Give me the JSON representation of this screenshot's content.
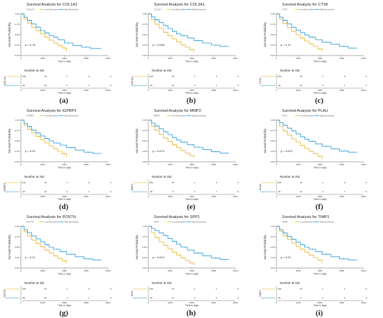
{
  "colors": {
    "low": "#e8b632",
    "high": "#2a9bd8",
    "axis": "#333333",
    "risk_line": "#555555"
  },
  "common": {
    "ylabel": "Survival Probability",
    "xlabel": "Time in days",
    "risk_title": "Number at risk",
    "risk_xlabel": "Time in days",
    "legend_low": "Low Expression",
    "legend_high": "High Expression",
    "risk_low_label": "Low Expression",
    "risk_high_label": "High Expression",
    "y_ticks": [
      "0.00",
      "0.25",
      "0.50",
      "0.75",
      "1.00"
    ],
    "x_ticks": [
      "0",
      "1000",
      "2000",
      "3000",
      "4000"
    ]
  },
  "chart_data": [
    {
      "type": "line",
      "letter": "(a)",
      "gene": "COL1A1",
      "title": "Survival Analysis for COL1A1",
      "pvalue": "p = 0.15",
      "xlim": [
        0,
        4000
      ],
      "ylim": [
        0,
        1
      ],
      "series": [
        {
          "name": "Low Expression",
          "x": [
            0,
            150,
            300,
            500,
            700,
            900,
            1100,
            1300,
            1500,
            1700,
            1900,
            2100
          ],
          "y": [
            1.0,
            0.88,
            0.78,
            0.68,
            0.6,
            0.52,
            0.44,
            0.37,
            0.3,
            0.24,
            0.18,
            0.1
          ]
        },
        {
          "name": "High Expression",
          "x": [
            0,
            150,
            300,
            500,
            700,
            900,
            1100,
            1300,
            1500,
            1700,
            2000,
            2400,
            2800,
            3200,
            3700
          ],
          "y": [
            1.0,
            0.92,
            0.84,
            0.76,
            0.68,
            0.6,
            0.54,
            0.48,
            0.44,
            0.38,
            0.3,
            0.24,
            0.2,
            0.17,
            0.17
          ]
        }
      ],
      "risk_low": [
        "138",
        "15",
        "1",
        "0",
        "0"
      ],
      "risk_high": [
        "46",
        "10",
        "3",
        "1",
        "0"
      ]
    },
    {
      "type": "line",
      "letter": "(b)",
      "gene": "COL3A1",
      "title": "Survival Analysis for COL3A1",
      "pvalue": "p = 0.048",
      "xlim": [
        0,
        4000
      ],
      "ylim": [
        0,
        1
      ],
      "series": [
        {
          "name": "Low Expression",
          "x": [
            0,
            150,
            300,
            500,
            700,
            900,
            1100,
            1300,
            1500,
            1700,
            1900,
            2100
          ],
          "y": [
            1.0,
            0.86,
            0.75,
            0.65,
            0.56,
            0.48,
            0.4,
            0.33,
            0.26,
            0.2,
            0.14,
            0.08
          ]
        },
        {
          "name": "High Expression",
          "x": [
            0,
            150,
            300,
            500,
            700,
            900,
            1100,
            1300,
            1500,
            1800,
            2100,
            2500,
            2900,
            3300,
            3700
          ],
          "y": [
            1.0,
            0.93,
            0.86,
            0.79,
            0.72,
            0.65,
            0.58,
            0.52,
            0.48,
            0.42,
            0.36,
            0.3,
            0.25,
            0.22,
            0.22
          ]
        }
      ],
      "risk_low": [
        "138",
        "15",
        "1",
        "0",
        "0"
      ],
      "risk_high": [
        "46",
        "10",
        "3",
        "1",
        "0"
      ]
    },
    {
      "type": "line",
      "letter": "(c)",
      "gene": "CTSK",
      "title": "Survival Analysis for CTSK",
      "pvalue": "p = 0.12",
      "xlim": [
        0,
        4000
      ],
      "ylim": [
        0,
        1
      ],
      "series": [
        {
          "name": "Low Expression",
          "x": [
            0,
            150,
            300,
            500,
            700,
            900,
            1100,
            1300,
            1500,
            1700,
            1900,
            2100
          ],
          "y": [
            1.0,
            0.87,
            0.77,
            0.67,
            0.58,
            0.5,
            0.42,
            0.35,
            0.28,
            0.22,
            0.16,
            0.1
          ]
        },
        {
          "name": "High Expression",
          "x": [
            0,
            150,
            300,
            500,
            700,
            900,
            1100,
            1300,
            1500,
            1800,
            2100,
            2500,
            2900,
            3300,
            3700
          ],
          "y": [
            1.0,
            0.92,
            0.84,
            0.76,
            0.68,
            0.61,
            0.55,
            0.49,
            0.44,
            0.38,
            0.32,
            0.27,
            0.22,
            0.18,
            0.18
          ]
        }
      ],
      "risk_low": [
        "138",
        "15",
        "1",
        "0",
        "0"
      ],
      "risk_high": [
        "46",
        "10",
        "3",
        "1",
        "0"
      ]
    },
    {
      "type": "line",
      "letter": "(d)",
      "gene": "IGFBP3",
      "title": "Survival Analysis for IGFBP3",
      "pvalue": "p = 0.22",
      "xlim": [
        0,
        4000
      ],
      "ylim": [
        0,
        1
      ],
      "series": [
        {
          "name": "Low Expression",
          "x": [
            0,
            150,
            300,
            500,
            700,
            900,
            1100,
            1300,
            1500,
            1700,
            1900,
            2100
          ],
          "y": [
            1.0,
            0.88,
            0.78,
            0.69,
            0.61,
            0.53,
            0.45,
            0.38,
            0.31,
            0.25,
            0.19,
            0.12
          ]
        },
        {
          "name": "High Expression",
          "x": [
            0,
            150,
            300,
            500,
            700,
            900,
            1100,
            1300,
            1500,
            1800,
            2100,
            2500,
            2900,
            3300,
            3700
          ],
          "y": [
            1.0,
            0.92,
            0.84,
            0.76,
            0.69,
            0.62,
            0.56,
            0.5,
            0.45,
            0.4,
            0.34,
            0.28,
            0.23,
            0.2,
            0.2
          ]
        }
      ],
      "risk_low": [
        "138",
        "15",
        "1",
        "0",
        "0"
      ],
      "risk_high": [
        "46",
        "10",
        "3",
        "1",
        "0"
      ]
    },
    {
      "type": "line",
      "letter": "(e)",
      "gene": "MMP2",
      "title": "Survival Analysis for MMP2",
      "pvalue": "p = 0.074",
      "xlim": [
        0,
        4000
      ],
      "ylim": [
        0,
        1
      ],
      "series": [
        {
          "name": "Low Expression",
          "x": [
            0,
            150,
            300,
            500,
            700,
            900,
            1100,
            1300,
            1500,
            1700,
            1900,
            2100
          ],
          "y": [
            1.0,
            0.86,
            0.76,
            0.66,
            0.57,
            0.49,
            0.41,
            0.34,
            0.27,
            0.21,
            0.15,
            0.09
          ]
        },
        {
          "name": "High Expression",
          "x": [
            0,
            150,
            300,
            500,
            700,
            900,
            1100,
            1300,
            1500,
            1800,
            2100,
            2500,
            2900,
            3300,
            3700
          ],
          "y": [
            1.0,
            0.93,
            0.86,
            0.79,
            0.72,
            0.65,
            0.58,
            0.52,
            0.47,
            0.41,
            0.35,
            0.29,
            0.24,
            0.21,
            0.21
          ]
        }
      ],
      "risk_low": [
        "136",
        "16",
        "1",
        "0",
        "0"
      ],
      "risk_high": [
        "48",
        "9",
        "3",
        "1",
        "0"
      ]
    },
    {
      "type": "line",
      "letter": "(f)",
      "gene": "PLAU",
      "title": "Survival Analysis for PLAU",
      "pvalue": "p = 0.022",
      "xlim": [
        0,
        4000
      ],
      "ylim": [
        0,
        1
      ],
      "series": [
        {
          "name": "Low Expression",
          "x": [
            0,
            150,
            300,
            500,
            700,
            900,
            1100,
            1300,
            1500,
            1700,
            1900,
            2100
          ],
          "y": [
            1.0,
            0.85,
            0.74,
            0.64,
            0.55,
            0.47,
            0.39,
            0.32,
            0.25,
            0.19,
            0.13,
            0.07
          ]
        },
        {
          "name": "High Expression",
          "x": [
            0,
            150,
            300,
            500,
            700,
            900,
            1100,
            1300,
            1500,
            1800,
            2100,
            2500,
            2900,
            3300,
            3700
          ],
          "y": [
            1.0,
            0.94,
            0.88,
            0.81,
            0.74,
            0.67,
            0.6,
            0.54,
            0.49,
            0.43,
            0.37,
            0.31,
            0.26,
            0.23,
            0.23
          ]
        }
      ],
      "risk_low": [
        "138",
        "15",
        "1",
        "0",
        "0"
      ],
      "risk_high": [
        "46",
        "11",
        "3",
        "1",
        "0"
      ]
    },
    {
      "type": "line",
      "letter": "(g)",
      "gene": "POSTN",
      "title": "Survival Analysis for POSTN",
      "pvalue": "p = 0.11",
      "xlim": [
        0,
        4000
      ],
      "ylim": [
        0,
        1
      ],
      "series": [
        {
          "name": "Low Expression",
          "x": [
            0,
            150,
            300,
            500,
            700,
            900,
            1100,
            1300,
            1500,
            1700,
            1900,
            2100
          ],
          "y": [
            1.0,
            0.87,
            0.77,
            0.67,
            0.59,
            0.51,
            0.43,
            0.36,
            0.29,
            0.23,
            0.17,
            0.11
          ]
        },
        {
          "name": "High Expression",
          "x": [
            0,
            150,
            300,
            500,
            700,
            900,
            1100,
            1300,
            1500,
            1800,
            2100,
            2500,
            2900,
            3300,
            3700
          ],
          "y": [
            1.0,
            0.92,
            0.85,
            0.77,
            0.7,
            0.63,
            0.56,
            0.5,
            0.45,
            0.39,
            0.33,
            0.27,
            0.22,
            0.19,
            0.19
          ]
        }
      ],
      "risk_low": [
        "138",
        "12",
        "1",
        "0",
        "0"
      ],
      "risk_high": [
        "46",
        "12",
        "3",
        "1",
        "0"
      ]
    },
    {
      "type": "line",
      "letter": "(h)",
      "gene": "SPP1",
      "title": "Survival Analysis for SPP1",
      "pvalue": "p = 0.014",
      "xlim": [
        0,
        4000
      ],
      "ylim": [
        0,
        1
      ],
      "series": [
        {
          "name": "Low Expression",
          "x": [
            0,
            150,
            300,
            500,
            700,
            900,
            1100,
            1300,
            1500,
            1700,
            1900,
            2100
          ],
          "y": [
            1.0,
            0.85,
            0.73,
            0.63,
            0.54,
            0.46,
            0.38,
            0.31,
            0.24,
            0.18,
            0.12,
            0.06
          ]
        },
        {
          "name": "High Expression",
          "x": [
            0,
            150,
            300,
            500,
            700,
            900,
            1100,
            1300,
            1500,
            1800,
            2100,
            2500,
            2900,
            3300,
            3700
          ],
          "y": [
            1.0,
            0.95,
            0.9,
            0.84,
            0.78,
            0.71,
            0.64,
            0.57,
            0.5,
            0.43,
            0.36,
            0.29,
            0.24,
            0.21,
            0.21
          ]
        }
      ],
      "risk_low": [
        "138",
        "13",
        "2",
        "1",
        "0"
      ],
      "risk_high": [
        "46",
        "12",
        "2",
        "0",
        "0"
      ]
    },
    {
      "type": "line",
      "letter": "(i)",
      "gene": "TIMP1",
      "title": "Survival Analysis for TIMP1",
      "pvalue": "p = 0.23",
      "xlim": [
        0,
        4000
      ],
      "ylim": [
        0,
        1
      ],
      "series": [
        {
          "name": "Low Expression",
          "x": [
            0,
            150,
            300,
            500,
            700,
            900,
            1100,
            1300,
            1500,
            1700,
            1900,
            2100
          ],
          "y": [
            1.0,
            0.88,
            0.78,
            0.69,
            0.6,
            0.52,
            0.45,
            0.38,
            0.31,
            0.25,
            0.19,
            0.12
          ]
        },
        {
          "name": "High Expression",
          "x": [
            0,
            150,
            300,
            500,
            700,
            900,
            1100,
            1300,
            1500,
            1800,
            2100,
            2500,
            2900,
            3300,
            3700
          ],
          "y": [
            1.0,
            0.92,
            0.84,
            0.76,
            0.69,
            0.62,
            0.56,
            0.5,
            0.45,
            0.39,
            0.33,
            0.27,
            0.22,
            0.19,
            0.19
          ]
        }
      ],
      "risk_low": [
        "138",
        "19",
        "4",
        "1",
        "0"
      ],
      "risk_high": [
        "46",
        "6",
        "0",
        "0",
        "0"
      ]
    }
  ]
}
